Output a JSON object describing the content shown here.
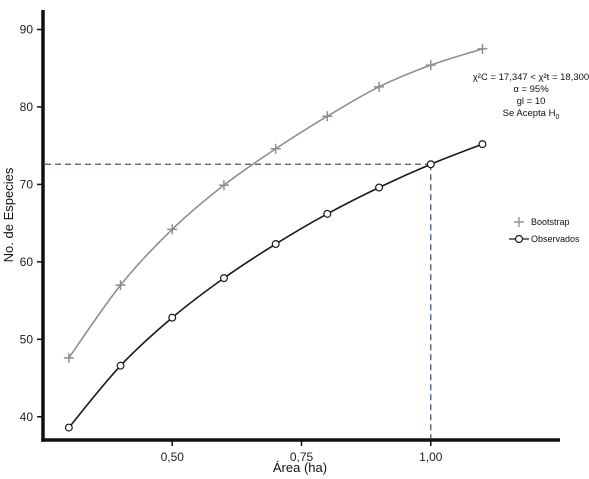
{
  "chart_data": {
    "type": "line",
    "xlabel": "Área (ha)",
    "ylabel": "No. de Especies",
    "xlim": [
      0.25,
      1.25
    ],
    "ylim": [
      37,
      92
    ],
    "x_ticks": [
      0.5,
      0.75,
      1.0
    ],
    "x_tick_labels": [
      "0,50",
      "0,75",
      "1,00"
    ],
    "y_ticks": [
      40,
      50,
      60,
      70,
      80,
      90
    ],
    "y_tick_labels": [
      "40",
      "50",
      "60",
      "70",
      "80",
      "90"
    ],
    "x": [
      0.3,
      0.4,
      0.5,
      0.6,
      0.7,
      0.8,
      0.9,
      1.0,
      1.1
    ],
    "series": [
      {
        "name": "Bootstrap",
        "marker": "plus",
        "color": "#8e8e8e",
        "values": [
          47.6,
          57.0,
          64.2,
          69.9,
          74.6,
          78.8,
          82.6,
          85.4,
          87.5
        ]
      },
      {
        "name": "Observados",
        "marker": "circle",
        "color": "#1a1a1a",
        "values": [
          38.6,
          46.6,
          52.8,
          57.9,
          62.3,
          66.2,
          69.6,
          72.6,
          75.2
        ]
      }
    ],
    "reference_lines": {
      "x": 1.0,
      "y": 72.6,
      "color": "#3a5a86",
      "style": "dashed"
    },
    "legend_position": "right",
    "grid": false,
    "annotation": {
      "line1": "χ²C = 17,347 < χ²t = 18,300",
      "line2": "α = 95%",
      "line3": "gl = 10",
      "line4_prefix": "Se Acepta H",
      "line4_sub": "0"
    }
  }
}
